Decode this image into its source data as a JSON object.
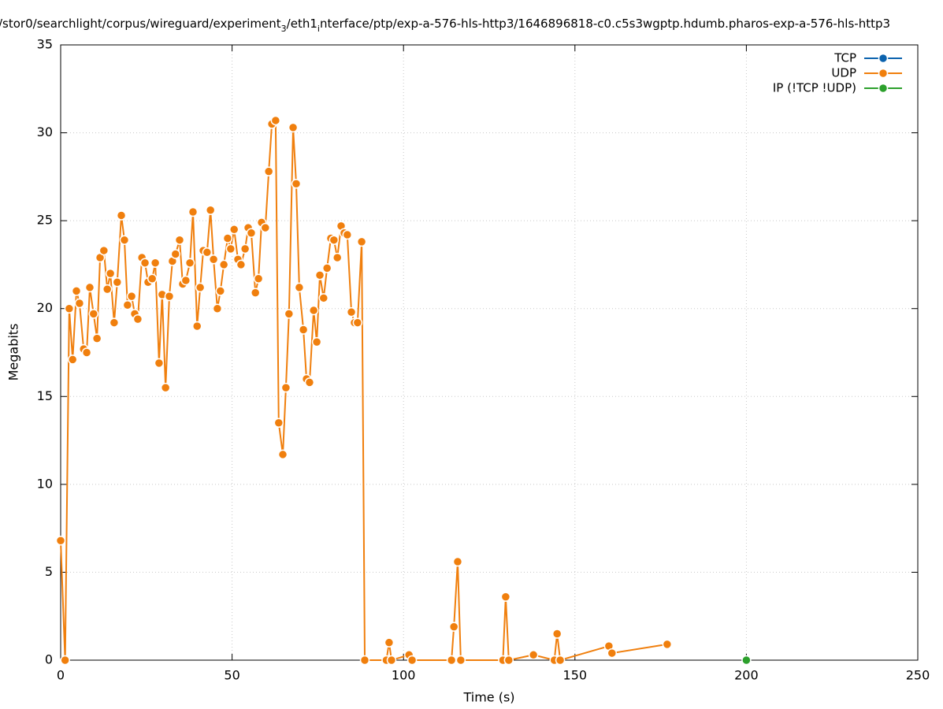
{
  "chart_data": {
    "type": "line",
    "title_parts": [
      "/stor0/searchlight/corpus/wireguard/experiment",
      "3",
      "/eth1",
      "i",
      "nterface/ptp/exp-a-576-hls-http3/1646896818-c0.c5s3wgptp.hdumb.pharos-exp-a-576-hls-http3"
    ],
    "x_label": "Time (s)",
    "y_label": "Megabits",
    "xlim": [
      0,
      250
    ],
    "xticks": [
      0,
      50,
      100,
      150,
      200,
      250
    ],
    "ylim": [
      0,
      35
    ],
    "yticks": [
      0,
      5,
      10,
      15,
      20,
      25,
      30,
      35
    ],
    "grid": true,
    "legend": "top-right",
    "series": [
      {
        "name": "TCP",
        "color": "#0b62ad",
        "x": [],
        "values": []
      },
      {
        "name": "UDP",
        "color": "#f07f0d",
        "x": [
          0,
          1.3,
          2.5,
          3.5,
          4.6,
          5.5,
          6.7,
          7.6,
          8.5,
          9.6,
          10.6,
          11.5,
          12.6,
          13.6,
          14.5,
          15.6,
          16.5,
          17.7,
          18.6,
          19.5,
          20.7,
          21.6,
          22.5,
          23.7,
          24.6,
          25.5,
          26.7,
          27.6,
          28.7,
          29.6,
          30.6,
          31.7,
          32.6,
          33.5,
          34.7,
          35.6,
          36.5,
          37.7,
          38.6,
          39.8,
          40.7,
          41.6,
          42.7,
          43.7,
          44.6,
          45.7,
          46.6,
          47.6,
          48.7,
          49.6,
          50.6,
          51.7,
          52.6,
          53.8,
          54.7,
          55.6,
          56.8,
          57.7,
          58.6,
          59.7,
          60.7,
          61.6,
          62.7,
          63.6,
          64.8,
          65.7,
          66.6,
          67.8,
          68.7,
          69.6,
          70.8,
          71.7,
          72.6,
          73.8,
          74.7,
          75.6,
          76.7,
          77.7,
          78.8,
          79.7,
          80.7,
          81.8,
          82.7,
          83.6,
          84.8,
          85.7,
          86.6,
          87.8,
          88.7,
          95.0,
          95.8,
          96.5,
          101.6,
          102.5,
          114.0,
          114.7,
          115.8,
          116.7,
          129.0,
          129.8,
          130.7,
          137.9,
          144.0,
          144.8,
          145.7,
          159.9,
          160.8,
          176.9
        ],
        "values": [
          6.8,
          0,
          20.0,
          17.1,
          21.0,
          20.3,
          17.7,
          17.5,
          21.2,
          19.7,
          18.3,
          22.9,
          23.3,
          21.1,
          22.0,
          19.2,
          21.5,
          25.3,
          23.9,
          20.2,
          20.7,
          19.7,
          19.4,
          22.9,
          22.6,
          21.5,
          21.7,
          22.6,
          16.9,
          20.8,
          15.5,
          20.7,
          22.7,
          23.1,
          23.9,
          21.4,
          21.6,
          22.6,
          25.5,
          19.0,
          21.2,
          23.3,
          23.2,
          25.6,
          22.8,
          20.0,
          21.0,
          22.5,
          24.0,
          23.4,
          24.5,
          22.8,
          22.5,
          23.4,
          24.6,
          24.3,
          20.9,
          21.7,
          24.9,
          24.6,
          27.8,
          30.5,
          30.7,
          13.5,
          11.7,
          15.5,
          19.7,
          30.3,
          27.1,
          21.2,
          18.8,
          16.0,
          15.8,
          19.9,
          18.1,
          21.9,
          20.6,
          22.3,
          24.0,
          23.9,
          22.9,
          24.7,
          24.3,
          24.2,
          19.8,
          19.2,
          19.2,
          23.8,
          0,
          0,
          1.0,
          0,
          0.3,
          0,
          0,
          1.9,
          5.6,
          0,
          0,
          3.6,
          0,
          0.3,
          0,
          1.5,
          0,
          0.8,
          0.4,
          0.9
        ]
      },
      {
        "name": "IP (!TCP  !UDP)",
        "color": "#2ca02c",
        "x": [
          200
        ],
        "values": [
          0
        ]
      }
    ]
  }
}
